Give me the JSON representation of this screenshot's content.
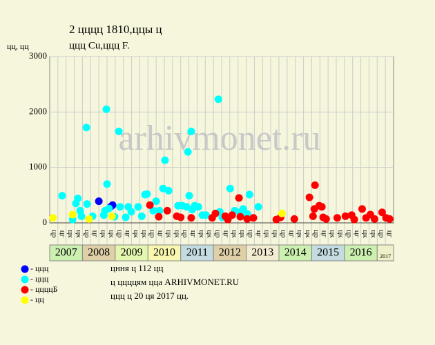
{
  "chart_data": {
    "type": "scatter",
    "title": "2 цццц 1810,ццы ц",
    "subtitle": "ццц Cu,ццц F.",
    "y_label": "цц, цц",
    "watermark": "arhivmonet.ru",
    "xlim": [
      2007,
      2017.5
    ],
    "ylim": [
      0,
      3000
    ],
    "yticks": [
      0,
      1000,
      2000,
      3000
    ],
    "xticks": [
      2007,
      2008,
      2009,
      2010,
      2011,
      2012,
      2013,
      2014,
      2015,
      2016,
      2017
    ],
    "year_colors": [
      "#ccf0b0",
      "#e0d0a8",
      "#e4f7b0",
      "#f7f7b0",
      "#c4dce0",
      "#e0d0a8",
      "#f2ecd0",
      "#ccf0b0",
      "#c4dce0",
      "#ccf0b0",
      "#f0f0c8"
    ],
    "quarter_labels": [
      "цр",
      "цг",
      "цк",
      "цк"
    ],
    "grid": true,
    "series": [
      {
        "name": "- ццц",
        "color": "#0000ff",
        "x": [
          2008.5,
          2008.86,
          2008.92
        ],
        "values": [
          390,
          290,
          320
        ]
      },
      {
        "name": "- ццц",
        "color": "#00ffff",
        "x": [
          2007.38,
          2007.7,
          2007.8,
          2007.86,
          2007.93,
          2007.97,
          2008.12,
          2008.14,
          2008.31,
          2008.65,
          2008.69,
          2008.73,
          2008.75,
          2008.81,
          2008.98,
          2009.11,
          2009.15,
          2009.32,
          2009.4,
          2009.49,
          2009.7,
          2009.81,
          2009.91,
          2009.97,
          2010.16,
          2010.25,
          2010.35,
          2010.46,
          2010.52,
          2010.63,
          2010.92,
          2011.05,
          2011.18,
          2011.22,
          2011.26,
          2011.32,
          2011.35,
          2011.43,
          2011.54,
          2011.66,
          2011.77,
          2012.15,
          2012.19,
          2012.27,
          2012.51,
          2012.65,
          2012.8,
          2012.91,
          2013.03,
          2013.1,
          2013.37
        ],
        "values": [
          490,
          60,
          350,
          440,
          220,
          120,
          1720,
          340,
          120,
          140,
          220,
          2050,
          700,
          260,
          110,
          1650,
          290,
          100,
          290,
          200,
          290,
          120,
          510,
          520,
          220,
          390,
          220,
          620,
          1130,
          580,
          310,
          310,
          290,
          1280,
          490,
          1650,
          240,
          310,
          290,
          140,
          140,
          2230,
          200,
          100,
          620,
          220,
          190,
          250,
          160,
          510,
          290
        ]
      },
      {
        "name": "- ццццБ",
        "color": "#ff0000",
        "x": [
          2010.06,
          2010.33,
          2010.59,
          2010.88,
          2011.0,
          2011.32,
          2011.96,
          2012.06,
          2012.36,
          2012.44,
          2012.57,
          2012.78,
          2012.82,
          2013.03,
          2013.22,
          2013.92,
          2014.05,
          2014.47,
          2014.93,
          2015.04,
          2015.08,
          2015.1,
          2015.23,
          2015.31,
          2015.35,
          2015.44,
          2015.78,
          2016.03,
          2016.22,
          2016.3,
          2016.54,
          2016.66,
          2016.79,
          2016.92,
          2017.15,
          2017.27,
          2017.38
        ],
        "values": [
          320,
          110,
          220,
          120,
          100,
          90,
          90,
          170,
          120,
          60,
          140,
          450,
          110,
          70,
          90,
          60,
          100,
          70,
          460,
          120,
          250,
          680,
          310,
          290,
          100,
          70,
          90,
          120,
          140,
          60,
          250,
          90,
          150,
          70,
          190,
          90,
          70
        ]
      },
      {
        "name": "- цц",
        "color": "#ffff00",
        "x": [
          2007.1,
          2007.7,
          2008.2,
          2008.9,
          2014.09
        ],
        "values": [
          90,
          150,
          70,
          120,
          170
        ]
      }
    ],
    "notes": [
      "цння ц 112 цц",
      "ц ццццям цца ARHIVMONET.RU",
      "ццц ц 20 ця 2017 цц."
    ]
  }
}
